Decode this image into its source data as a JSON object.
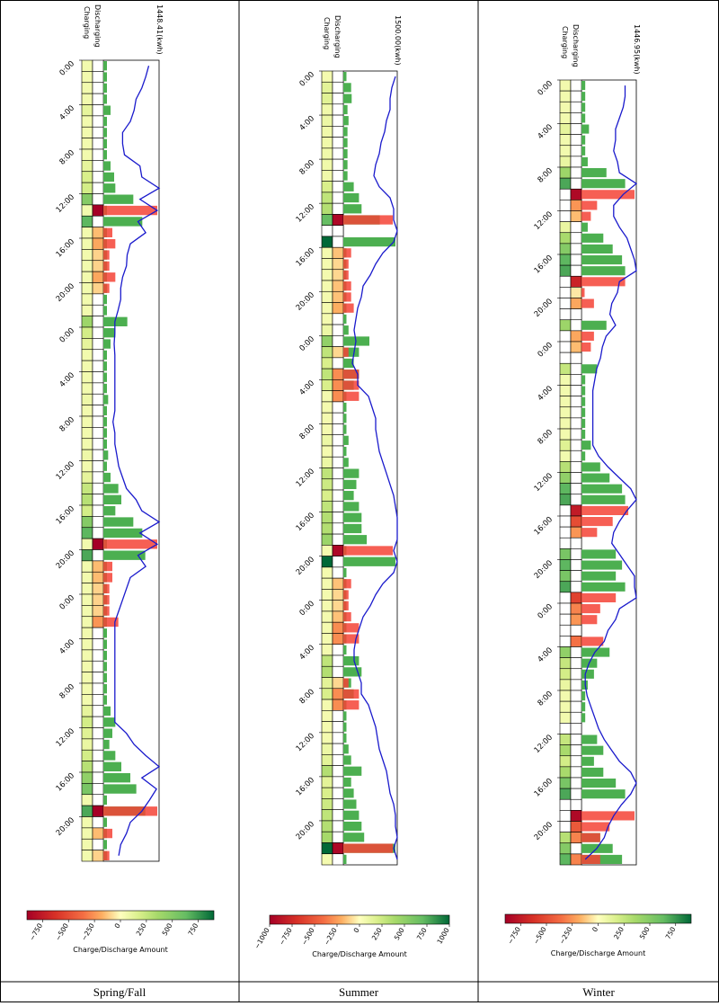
{
  "panels": [
    {
      "season": "Spring/Fall",
      "max_label": "1448.41(kwh)",
      "col_labels": [
        "Charging",
        "Discharging"
      ],
      "time_labels": [
        "0:00",
        "4:00",
        "8:00",
        "12:00",
        "16:00",
        "20:00",
        "0:00",
        "4:00",
        "8:00",
        "12:00",
        "16:00",
        "20:00",
        "0:00",
        "4:00",
        "8:00",
        "12:00",
        "16:00",
        "20:00"
      ],
      "colorbar": {
        "ticks": [
          -750,
          -500,
          -250,
          0,
          250,
          500,
          750
        ],
        "tick_labels": [
          "−750",
          "−500",
          "−250",
          "0",
          "250",
          "500",
          "750"
        ],
        "vmin": -900,
        "vmax": 900,
        "label": "Charge/Discharge Amount"
      }
    },
    {
      "season": "Summer",
      "max_label": "1500.00(kwh)",
      "col_labels": [
        "Charging",
        "Discharging"
      ],
      "time_labels": [
        "0:00",
        "4:00",
        "8:00",
        "12:00",
        "16:00",
        "20:00",
        "0:00",
        "4:00",
        "8:00",
        "12:00",
        "16:00",
        "20:00",
        "0:00",
        "4:00",
        "8:00",
        "12:00",
        "16:00",
        "20:00"
      ],
      "colorbar": {
        "ticks": [
          -1000,
          -750,
          -500,
          -250,
          0,
          250,
          500,
          750,
          1000
        ],
        "tick_labels": [
          "−1000",
          "−750",
          "−500",
          "−250",
          "0",
          "250",
          "500",
          "750",
          "1000"
        ],
        "vmin": -1000,
        "vmax": 1000,
        "label": "Charge/Discharge Amount"
      }
    },
    {
      "season": "Winter",
      "max_label": "1446.95(kwh)",
      "col_labels": [
        "Charging",
        "Discharging"
      ],
      "time_labels": [
        "0:00",
        "4:00",
        "8:00",
        "12:00",
        "16:00",
        "20:00",
        "0:00",
        "4:00",
        "8:00",
        "12:00",
        "16:00",
        "20:00",
        "0:00",
        "4:00",
        "8:00",
        "12:00",
        "16:00",
        "20:00"
      ],
      "colorbar": {
        "ticks": [
          -750,
          -500,
          -250,
          0,
          250,
          500,
          750
        ],
        "tick_labels": [
          "−750",
          "−500",
          "−250",
          "0",
          "250",
          "500",
          "750"
        ],
        "vmin": -900,
        "vmax": 900,
        "label": "Charge/Discharge Amount"
      }
    }
  ],
  "chart_data": [
    {
      "type": "bar",
      "title": "Spring/Fall",
      "max_energy_kwh": 1448.41,
      "hours": 72,
      "charging": [
        60,
        60,
        60,
        60,
        120,
        60,
        60,
        60,
        60,
        120,
        180,
        200,
        500,
        60,
        650,
        60,
        60,
        60,
        60,
        60,
        60,
        60,
        60,
        400,
        200,
        120,
        60,
        60,
        60,
        60,
        80,
        60,
        60,
        60,
        60,
        80,
        60,
        120,
        250,
        300,
        200,
        500,
        650,
        60,
        700,
        60,
        60,
        60,
        60,
        60,
        60,
        60,
        60,
        60,
        60,
        60,
        60,
        60,
        120,
        200,
        150,
        100,
        200,
        300,
        450,
        550,
        60,
        700,
        60,
        60,
        60,
        60
      ],
      "discharging": [
        0,
        0,
        0,
        0,
        0,
        0,
        0,
        0,
        0,
        0,
        0,
        0,
        0,
        -900,
        0,
        -150,
        -200,
        -100,
        -100,
        -200,
        -100,
        0,
        0,
        0,
        0,
        0,
        0,
        0,
        0,
        0,
        0,
        0,
        0,
        0,
        0,
        0,
        0,
        0,
        0,
        0,
        0,
        0,
        0,
        -900,
        0,
        -150,
        -150,
        -100,
        -100,
        -100,
        -250,
        0,
        0,
        0,
        0,
        0,
        0,
        0,
        0,
        0,
        0,
        0,
        0,
        0,
        0,
        0,
        0,
        -900,
        0,
        -150,
        0,
        -100
      ],
      "energy_line": [
        1180,
        1100,
        1000,
        850,
        800,
        700,
        500,
        500,
        550,
        950,
        1000,
        1448,
        950,
        1400,
        900,
        1100,
        700,
        620,
        600,
        500,
        450,
        450,
        380,
        300,
        300,
        280,
        300,
        300,
        300,
        300,
        300,
        300,
        250,
        300,
        300,
        350,
        400,
        500,
        600,
        850,
        1000,
        1448,
        950,
        1400,
        900,
        1100,
        700,
        600,
        500,
        400,
        300,
        300,
        300,
        300,
        300,
        300,
        300,
        300,
        300,
        300,
        600,
        800,
        1100,
        1448,
        1000,
        1380,
        1200,
        1000,
        700,
        600,
        450,
        400
      ]
    },
    {
      "type": "bar",
      "title": "Summer",
      "max_energy_kwh": 1500.0,
      "hours": 72,
      "charging": [
        60,
        150,
        160,
        80,
        100,
        80,
        80,
        80,
        80,
        80,
        200,
        300,
        350,
        700,
        0,
        1000,
        60,
        60,
        60,
        60,
        60,
        60,
        60,
        100,
        500,
        300,
        200,
        300,
        200,
        60,
        60,
        60,
        60,
        100,
        60,
        100,
        300,
        250,
        200,
        300,
        350,
        350,
        450,
        60,
        1000,
        60,
        60,
        60,
        60,
        60,
        60,
        60,
        60,
        300,
        350,
        150,
        200,
        60,
        60,
        60,
        60,
        100,
        150,
        350,
        150,
        200,
        250,
        300,
        350,
        400,
        1000,
        60
      ],
      "discharging": [
        0,
        0,
        0,
        0,
        0,
        0,
        0,
        0,
        0,
        0,
        0,
        0,
        0,
        -950,
        0,
        0,
        -150,
        -100,
        -100,
        -150,
        -150,
        -200,
        0,
        0,
        0,
        -100,
        0,
        -300,
        -300,
        -300,
        0,
        0,
        0,
        0,
        0,
        0,
        0,
        0,
        0,
        0,
        0,
        0,
        0,
        -950,
        0,
        0,
        -150,
        -100,
        -100,
        -150,
        -300,
        -300,
        0,
        0,
        0,
        -100,
        -300,
        -300,
        0,
        0,
        0,
        0,
        0,
        0,
        0,
        0,
        0,
        0,
        0,
        0,
        -950,
        0
      ],
      "energy_line": [
        1450,
        1350,
        1300,
        1300,
        1200,
        1150,
        1050,
        1000,
        900,
        850,
        1000,
        1300,
        1400,
        1400,
        1500,
        1400,
        1100,
        900,
        750,
        550,
        500,
        400,
        350,
        300,
        350,
        300,
        250,
        400,
        400,
        700,
        800,
        900,
        900,
        950,
        1000,
        1100,
        1200,
        1300,
        1400,
        1450,
        1500,
        1500,
        1500,
        1400,
        1500,
        1400,
        1100,
        900,
        750,
        550,
        450,
        350,
        300,
        300,
        400,
        500,
        500,
        700,
        800,
        900,
        950,
        1000,
        1100,
        1200,
        1250,
        1300,
        1400,
        1450,
        1450,
        1500,
        1400,
        1500
      ]
    },
    {
      "type": "bar",
      "title": "Winter",
      "max_energy_kwh": 1446.95,
      "hours": 72,
      "charging": [
        60,
        60,
        60,
        60,
        120,
        60,
        60,
        100,
        400,
        700,
        0,
        0,
        0,
        100,
        350,
        500,
        650,
        700,
        0,
        0,
        0,
        0,
        400,
        0,
        0,
        0,
        250,
        60,
        60,
        60,
        60,
        60,
        60,
        150,
        60,
        300,
        450,
        650,
        700,
        0,
        0,
        0,
        0,
        550,
        650,
        550,
        700,
        0,
        0,
        0,
        0,
        0,
        450,
        250,
        200,
        100,
        60,
        60,
        60,
        0,
        250,
        350,
        200,
        350,
        550,
        700,
        0,
        0,
        0,
        300,
        500,
        650
      ],
      "discharging": [
        0,
        0,
        0,
        0,
        0,
        0,
        0,
        0,
        0,
        0,
        -850,
        -250,
        -150,
        0,
        0,
        0,
        0,
        0,
        -700,
        -50,
        -200,
        0,
        0,
        -200,
        -150,
        0,
        0,
        0,
        0,
        0,
        0,
        0,
        0,
        0,
        0,
        0,
        0,
        0,
        0,
        -750,
        -500,
        -250,
        0,
        0,
        0,
        0,
        0,
        -550,
        -300,
        -250,
        0,
        -350,
        0,
        0,
        0,
        0,
        0,
        0,
        0,
        0,
        0,
        0,
        0,
        0,
        0,
        0,
        0,
        -850,
        -450,
        -300,
        0,
        -300
      ],
      "energy_line": [
        1150,
        1150,
        1100,
        1000,
        900,
        900,
        850,
        950,
        1000,
        1446,
        1100,
        850,
        850,
        1000,
        1200,
        1300,
        1400,
        1446,
        1000,
        950,
        800,
        750,
        900,
        650,
        550,
        500,
        400,
        350,
        300,
        300,
        300,
        300,
        300,
        300,
        450,
        700,
        1000,
        1300,
        1446,
        1200,
        1000,
        850,
        800,
        1000,
        1200,
        1400,
        1400,
        1446,
        1000,
        900,
        700,
        600,
        350,
        200,
        100,
        100,
        150,
        250,
        350,
        450,
        600,
        800,
        1000,
        1300,
        1446,
        1300,
        1050,
        850,
        700,
        600,
        400,
        100
      ]
    }
  ]
}
